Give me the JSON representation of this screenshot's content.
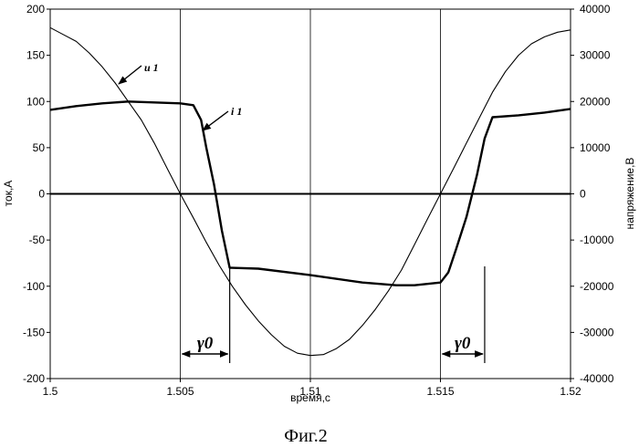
{
  "chart_data": {
    "type": "line",
    "caption": "Фиг.2",
    "xlabel": "время,с",
    "ylabel_left": "ток,А",
    "ylabel_right": "напряжение,В",
    "xlim": [
      1.5,
      1.52
    ],
    "ylim_left": [
      -200,
      200
    ],
    "ylim_right": [
      -40000,
      40000
    ],
    "x_ticks": [
      "1.5",
      "1.505",
      "1.51",
      "1.515",
      "1.52"
    ],
    "y_left_ticks": [
      "200",
      "150",
      "100",
      "50",
      "0",
      "-50",
      "-100",
      "-150",
      "-200"
    ],
    "y_right_ticks": [
      "40000",
      "30000",
      "20000",
      "10000",
      "0",
      "-10000",
      "-20000",
      "-30000",
      "-40000"
    ],
    "series": [
      {
        "name": "i1",
        "axis": "left",
        "x": [
          1.5,
          1.501,
          1.502,
          1.503,
          1.504,
          1.505,
          1.5055,
          1.5058,
          1.506,
          1.5063,
          1.5066,
          1.5069,
          1.508,
          1.51,
          1.512,
          1.5133,
          1.514,
          1.515,
          1.5153,
          1.5156,
          1.516,
          1.5164,
          1.5167,
          1.517,
          1.518,
          1.519,
          1.52
        ],
        "y": [
          91,
          95,
          98,
          100,
          99,
          98,
          96,
          80,
          50,
          10,
          -40,
          -80,
          -81,
          -88,
          -96,
          -99,
          -99,
          -96,
          -85,
          -60,
          -25,
          20,
          60,
          83,
          85,
          88,
          92
        ]
      },
      {
        "name": "u1",
        "axis": "right",
        "x": [
          1.5,
          1.5005,
          1.501,
          1.5015,
          1.502,
          1.5025,
          1.503,
          1.5035,
          1.504,
          1.5045,
          1.505,
          1.5055,
          1.506,
          1.5065,
          1.507,
          1.5075,
          1.508,
          1.5085,
          1.509,
          1.5095,
          1.51,
          1.5105,
          1.511,
          1.5115,
          1.512,
          1.5125,
          1.513,
          1.5135,
          1.514,
          1.5145,
          1.515,
          1.5155,
          1.516,
          1.5165,
          1.517,
          1.5175,
          1.518,
          1.5185,
          1.519,
          1.5195,
          1.52
        ],
        "y": [
          36000,
          34500,
          33000,
          30500,
          27500,
          24000,
          20000,
          16000,
          11000,
          5500,
          0,
          -5200,
          -10500,
          -15500,
          -20000,
          -24000,
          -27500,
          -30500,
          -33000,
          -34500,
          -35000,
          -34800,
          -33500,
          -31500,
          -28500,
          -25000,
          -21000,
          -16500,
          -11000,
          -5500,
          0,
          5500,
          11000,
          16500,
          22000,
          26500,
          30000,
          32500,
          34000,
          35000,
          35500
        ]
      }
    ],
    "annotations": {
      "u_label": "u 1",
      "i_label": "i 1",
      "gamma_label": "γ0",
      "gamma_intervals": [
        [
          1.505,
          1.5069
        ],
        [
          1.515,
          1.5167
        ]
      ]
    }
  }
}
